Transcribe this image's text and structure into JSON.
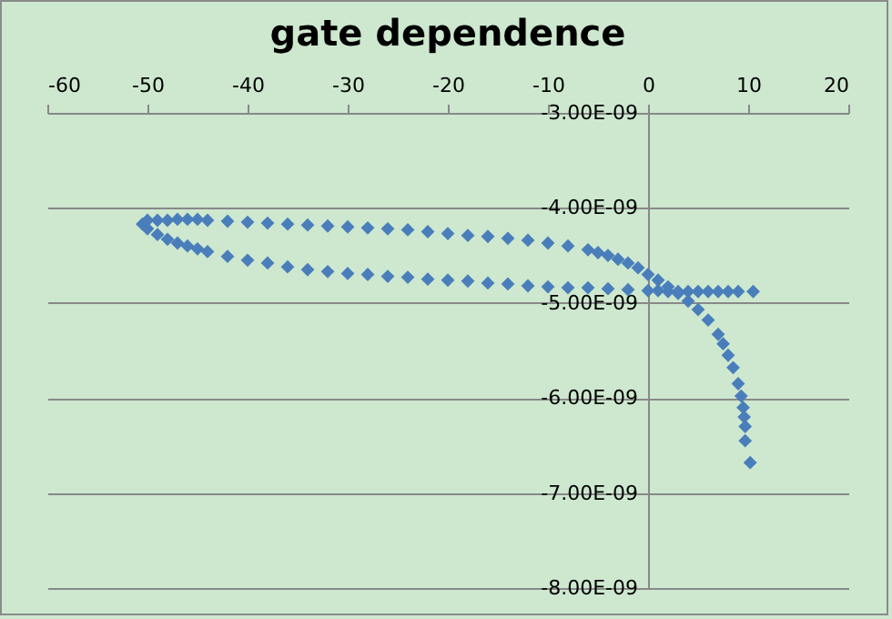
{
  "chart_data": {
    "type": "scatter",
    "title": "gate dependence",
    "x": [
      10.5,
      9,
      8,
      7,
      6,
      5,
      4,
      3,
      2,
      1,
      0,
      -2,
      -4,
      -6,
      -8,
      -10,
      -12,
      -14,
      -16,
      -18,
      -20,
      -22,
      -24,
      -26,
      -28,
      -30,
      -32,
      -34,
      -36,
      -38,
      -40,
      -42,
      -44,
      -45,
      -46,
      -47,
      -48,
      -49,
      -50,
      -50.5,
      -50,
      -49,
      -48,
      -47,
      -46,
      -45,
      -44,
      -42,
      -40,
      -38,
      -36,
      -34,
      -32,
      -30,
      -28,
      -26,
      -24,
      -22,
      -20,
      -18,
      -16,
      -14,
      -12,
      -10,
      -8,
      -6,
      -5,
      -4,
      -3,
      -2,
      -1,
      0,
      1,
      2,
      3,
      4,
      5,
      6,
      7,
      7.5,
      8,
      8.5,
      9,
      9.3,
      9.5,
      9.6,
      9.7,
      9.7,
      10.2
    ],
    "series": [
      {
        "color": "#4a7ebb",
        "values": [
          -4.88e-09,
          -4.88e-09,
          -4.88e-09,
          -4.88e-09,
          -4.88e-09,
          -4.88e-09,
          -4.88e-09,
          -4.88e-09,
          -4.88e-09,
          -4.87e-09,
          -4.87e-09,
          -4.86e-09,
          -4.85e-09,
          -4.84e-09,
          -4.84e-09,
          -4.83e-09,
          -4.82e-09,
          -4.8e-09,
          -4.79e-09,
          -4.77e-09,
          -4.76e-09,
          -4.75e-09,
          -4.73e-09,
          -4.72e-09,
          -4.7e-09,
          -4.69e-09,
          -4.67e-09,
          -4.65e-09,
          -4.62e-09,
          -4.58e-09,
          -4.55e-09,
          -4.51e-09,
          -4.46e-09,
          -4.43e-09,
          -4.4e-09,
          -4.37e-09,
          -4.33e-09,
          -4.28e-09,
          -4.22e-09,
          -4.17e-09,
          -4.13e-09,
          -4.13e-09,
          -4.13e-09,
          -4.12e-09,
          -4.12e-09,
          -4.12e-09,
          -4.13e-09,
          -4.14e-09,
          -4.15e-09,
          -4.16e-09,
          -4.17e-09,
          -4.18e-09,
          -4.19e-09,
          -4.2e-09,
          -4.21e-09,
          -4.22e-09,
          -4.23e-09,
          -4.25e-09,
          -4.27e-09,
          -4.29e-09,
          -4.3e-09,
          -4.32e-09,
          -4.34e-09,
          -4.37e-09,
          -4.4e-09,
          -4.44e-09,
          -4.47e-09,
          -4.5e-09,
          -4.54e-09,
          -4.58e-09,
          -4.63e-09,
          -4.7e-09,
          -4.76e-09,
          -4.83e-09,
          -4.9e-09,
          -4.98e-09,
          -5.07e-09,
          -5.18e-09,
          -5.33e-09,
          -5.43e-09,
          -5.55e-09,
          -5.68e-09,
          -5.85e-09,
          -5.98e-09,
          -6.1e-09,
          -6.2e-09,
          -6.3e-09,
          -6.45e-09,
          -6.68e-09
        ]
      }
    ],
    "xlim": [
      -60,
      20
    ],
    "xticks": [
      -60,
      -50,
      -40,
      -30,
      -20,
      -10,
      0,
      10,
      20
    ],
    "ylim": [
      -8e-09,
      -3e-09
    ],
    "yticks": [
      {
        "value": -8e-09,
        "label": "-8.00E-09"
      },
      {
        "value": -7e-09,
        "label": "-7.00E-09"
      },
      {
        "value": -6e-09,
        "label": "-6.00E-09"
      },
      {
        "value": -5e-09,
        "label": "-5.00E-09"
      },
      {
        "value": -4e-09,
        "label": "-4.00E-09"
      },
      {
        "value": -3e-09,
        "label": "-3.00E-09"
      }
    ],
    "grid": "y",
    "marker": "diamond",
    "legend": false
  }
}
